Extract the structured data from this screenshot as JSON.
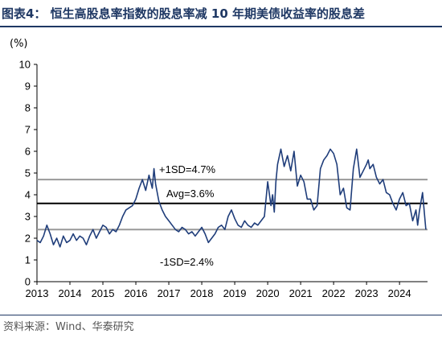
{
  "title": "图表4： 恒生高股息率指数的股息率减 10 年期美债收益率的股息差",
  "unit_label": "(%)",
  "source": "资料来源：Wind、华泰研究",
  "colors": {
    "series": "#1f3d7a",
    "avg_line": "#000000",
    "sd_lines": "#999999",
    "title": "#1f3864"
  },
  "chart_data": {
    "type": "line",
    "title": "",
    "xlabel": "",
    "ylabel": "(%)",
    "ylim": [
      0,
      10
    ],
    "yticks": [
      0,
      1,
      2,
      3,
      4,
      5,
      6,
      7,
      8,
      9,
      10
    ],
    "xlim": [
      2013.0,
      2024.85
    ],
    "xticks": [
      2013,
      2014,
      2015,
      2016,
      2017,
      2018,
      2019,
      2020,
      2021,
      2022,
      2023,
      2024
    ],
    "grid": false,
    "series": [
      {
        "name": "",
        "x": [
          2013.0,
          2013.1,
          2013.2,
          2013.3,
          2013.4,
          2013.5,
          2013.6,
          2013.7,
          2013.8,
          2013.9,
          2014.0,
          2014.1,
          2014.2,
          2014.3,
          2014.4,
          2014.5,
          2014.6,
          2014.7,
          2014.8,
          2014.9,
          2015.0,
          2015.1,
          2015.2,
          2015.3,
          2015.4,
          2015.5,
          2015.6,
          2015.7,
          2015.8,
          2015.9,
          2016.0,
          2016.1,
          2016.2,
          2016.3,
          2016.4,
          2016.5,
          2016.55,
          2016.6,
          2016.7,
          2016.8,
          2016.9,
          2017.0,
          2017.1,
          2017.2,
          2017.3,
          2017.4,
          2017.5,
          2017.6,
          2017.7,
          2017.8,
          2017.9,
          2018.0,
          2018.1,
          2018.2,
          2018.3,
          2018.4,
          2018.5,
          2018.6,
          2018.7,
          2018.8,
          2018.9,
          2019.0,
          2019.1,
          2019.2,
          2019.3,
          2019.4,
          2019.5,
          2019.6,
          2019.7,
          2019.8,
          2019.9,
          2020.0,
          2020.1,
          2020.15,
          2020.2,
          2020.25,
          2020.3,
          2020.4,
          2020.5,
          2020.6,
          2020.7,
          2020.8,
          2020.9,
          2021.0,
          2021.1,
          2021.2,
          2021.3,
          2021.4,
          2021.5,
          2021.6,
          2021.7,
          2021.8,
          2021.9,
          2022.0,
          2022.1,
          2022.2,
          2022.3,
          2022.4,
          2022.5,
          2022.6,
          2022.7,
          2022.8,
          2022.9,
          2023.0,
          2023.05,
          2023.1,
          2023.2,
          2023.3,
          2023.4,
          2023.5,
          2023.6,
          2023.7,
          2023.8,
          2023.9,
          2024.0,
          2024.1,
          2024.2,
          2024.3,
          2024.4,
          2024.5,
          2024.55,
          2024.6,
          2024.7,
          2024.8
        ],
        "values": [
          1.9,
          1.8,
          2.1,
          2.6,
          2.2,
          1.7,
          2.0,
          1.6,
          2.1,
          1.8,
          1.9,
          2.2,
          1.9,
          2.1,
          2.0,
          1.7,
          2.1,
          2.4,
          2.0,
          2.3,
          2.6,
          2.5,
          2.2,
          2.4,
          2.3,
          2.6,
          3.0,
          3.3,
          3.4,
          3.5,
          3.8,
          4.3,
          4.7,
          4.2,
          4.9,
          4.3,
          5.2,
          4.5,
          3.7,
          3.3,
          3.0,
          2.8,
          2.6,
          2.4,
          2.3,
          2.5,
          2.4,
          2.2,
          2.3,
          2.1,
          2.3,
          2.5,
          2.2,
          1.8,
          2.0,
          2.2,
          2.5,
          2.6,
          2.4,
          3.0,
          3.3,
          2.9,
          2.6,
          2.5,
          2.8,
          2.6,
          2.5,
          2.7,
          2.6,
          2.8,
          3.0,
          4.6,
          3.5,
          4.0,
          3.2,
          4.6,
          5.4,
          6.1,
          5.3,
          5.8,
          5.1,
          6.0,
          4.4,
          4.9,
          4.6,
          3.8,
          3.8,
          3.3,
          3.5,
          5.2,
          5.6,
          5.8,
          6.1,
          5.9,
          5.4,
          4.0,
          4.3,
          3.4,
          3.3,
          5.2,
          6.1,
          4.8,
          5.1,
          5.4,
          5.6,
          5.2,
          5.4,
          4.8,
          4.5,
          4.7,
          4.1,
          4.0,
          3.6,
          3.3,
          3.8,
          4.1,
          3.5,
          3.6,
          2.8,
          3.3,
          2.6,
          3.2,
          4.1,
          2.4
        ]
      }
    ],
    "reference_lines": [
      {
        "value": 4.7,
        "label": "+1SD=4.7%",
        "style": "sd"
      },
      {
        "value": 3.6,
        "label": "Avg=3.6%",
        "style": "avg"
      },
      {
        "value": 2.4,
        "label": "-1SD=2.4%",
        "style": "sd"
      }
    ]
  }
}
